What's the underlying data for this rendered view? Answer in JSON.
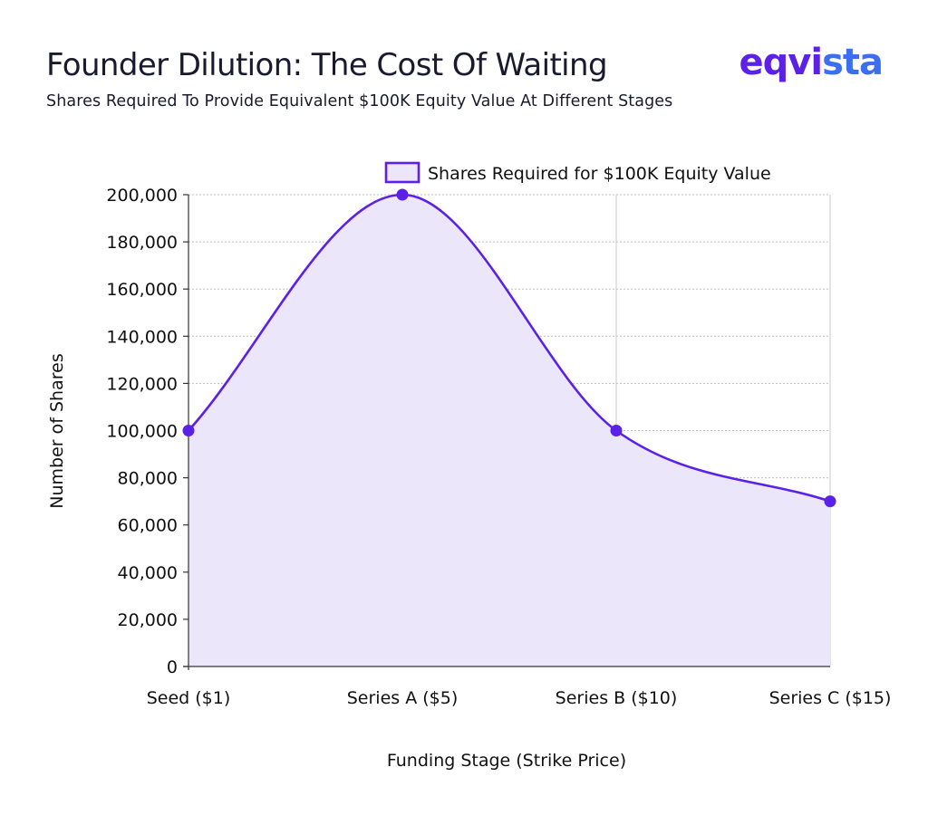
{
  "header": {
    "title": "Founder Dilution: The Cost Of Waiting",
    "subtitle": "Shares Required To Provide Equivalent $100K Equity Value At Different Stages",
    "logo_part1": "eqvi",
    "logo_part2": "sta"
  },
  "colors": {
    "line": "#5b21e6",
    "fill": "#ebe6fa",
    "logo_primary": "#5b21e6",
    "logo_secondary": "#3b6ff0"
  },
  "chart_data": {
    "type": "area",
    "title": "Founder Dilution: The Cost Of Waiting",
    "subtitle": "Shares Required To Provide Equivalent $100K Equity Value At Different Stages",
    "xlabel": "Funding Stage (Strike Price)",
    "ylabel": "Number of Shares",
    "categories": [
      "Seed ($1)",
      "Series A ($5)",
      "Series B ($10)",
      "Series C ($15)"
    ],
    "series": [
      {
        "name": "Shares Required for $100K Equity Value",
        "values": [
          100000,
          200000,
          100000,
          70000
        ]
      }
    ],
    "ylim": [
      0,
      200000
    ],
    "yticks": [
      0,
      20000,
      40000,
      60000,
      80000,
      100000,
      120000,
      140000,
      160000,
      180000,
      200000
    ],
    "ytick_labels": [
      "0",
      "20,000",
      "40,000",
      "60,000",
      "80,000",
      "100,000",
      "120,000",
      "140,000",
      "160,000",
      "180,000",
      "200,000"
    ],
    "grid": true,
    "smooth": true,
    "legend_position": "top-right"
  }
}
